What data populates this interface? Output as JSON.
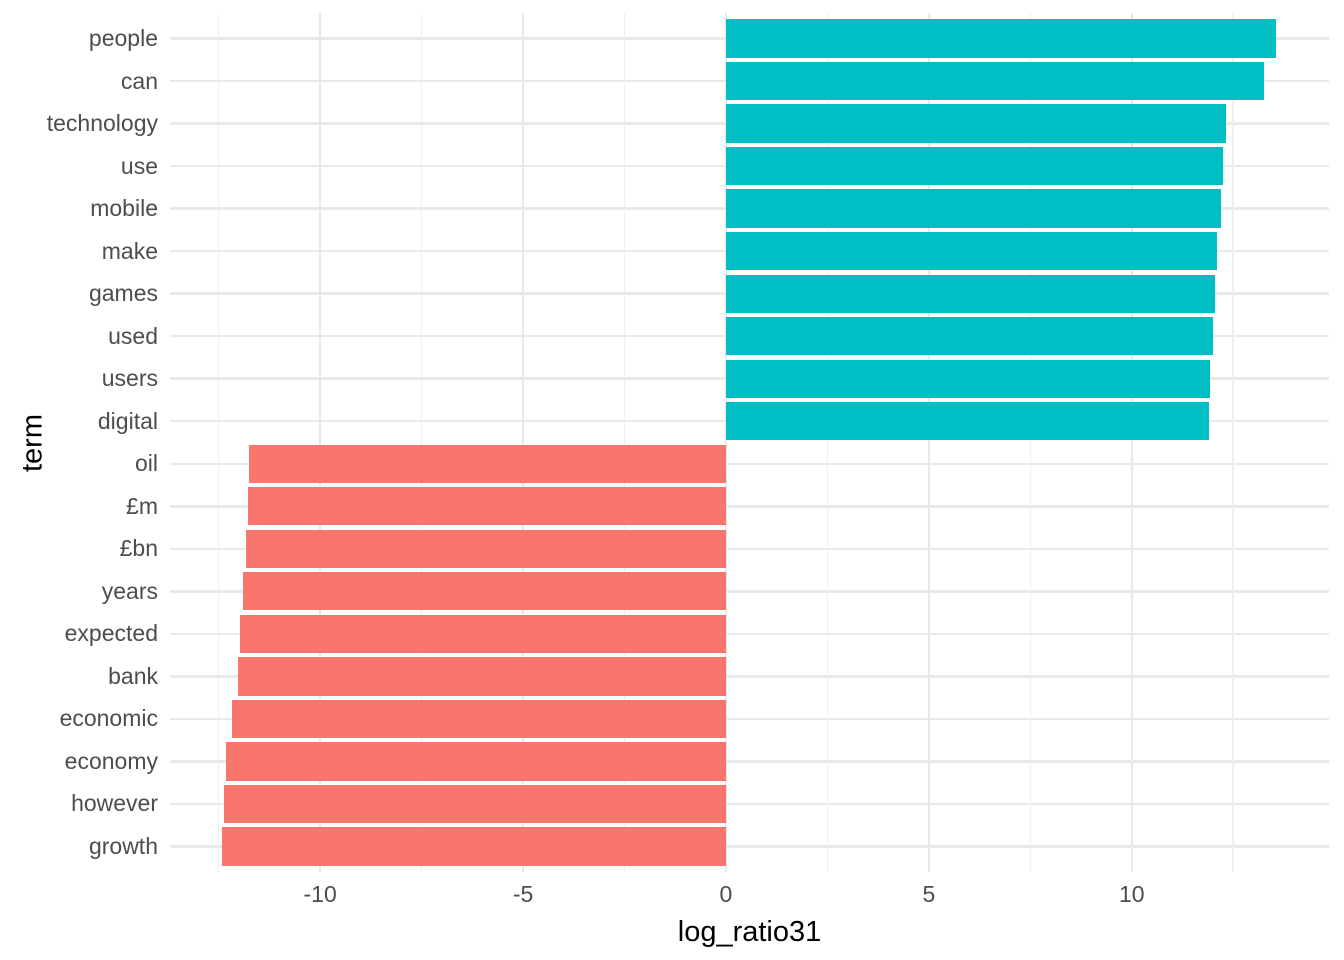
{
  "chart_data": {
    "type": "bar",
    "orientation": "horizontal",
    "title": "",
    "xlabel": "log_ratio31",
    "ylabel": "term",
    "categories": [
      "people",
      "can",
      "technology",
      "use",
      "mobile",
      "make",
      "games",
      "used",
      "users",
      "digital",
      "oil",
      "£m",
      "£bn",
      "years",
      "expected",
      "bank",
      "economic",
      "economy",
      "however",
      "growth"
    ],
    "values": [
      13.55,
      13.26,
      12.32,
      12.24,
      12.19,
      12.1,
      12.06,
      12.0,
      11.92,
      11.9,
      -11.76,
      -11.78,
      -11.83,
      -11.89,
      -11.98,
      -12.03,
      -12.16,
      -12.33,
      -12.38,
      -12.41
    ],
    "xlim": [
      -13.7,
      14.86
    ],
    "x_ticks": [
      -10,
      -5,
      0,
      5,
      10
    ],
    "x_tick_labels": [
      "-10",
      "-5",
      "0",
      "5",
      "10"
    ],
    "x_minor_ticks": [
      -12.5,
      -7.5,
      -2.5,
      2.5,
      7.5,
      12.5
    ],
    "bar_fraction": 0.9,
    "legend": "none",
    "grid": true,
    "colors": {
      "positive_bar": "#00BFC4",
      "negative_bar": "#F8766D",
      "grid_major": "#E9E9E9",
      "grid_minor": "#EFEFEF",
      "tick_text": "#4D4D4D",
      "axis_title_text": "#000000",
      "background": "#FFFFFF"
    }
  }
}
